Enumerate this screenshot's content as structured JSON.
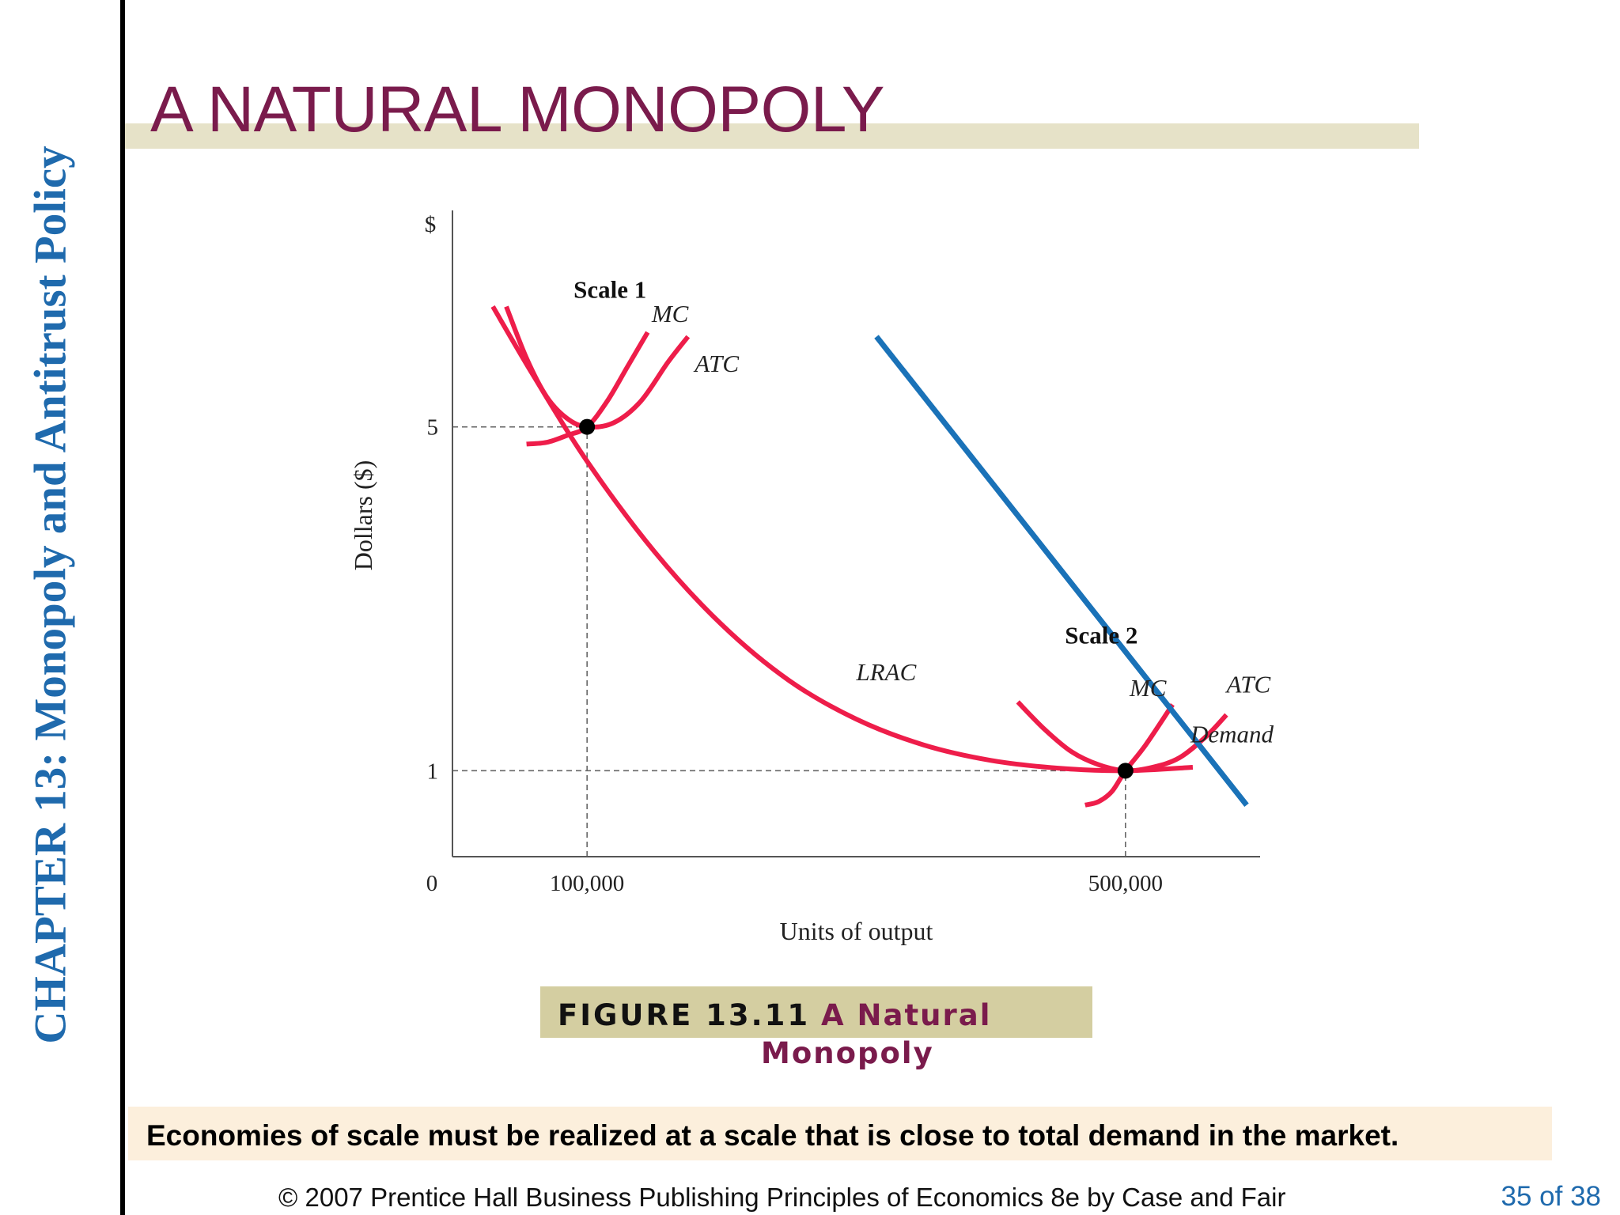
{
  "sidebar": {
    "chapter_title": "CHAPTER 13:  Monopoly and Antitrust Policy"
  },
  "slide": {
    "title": "A NATURAL MONOPOLY"
  },
  "figure": {
    "number": "FIGURE 13.11",
    "title_line1": "A Natural",
    "title_line2": "Monopoly"
  },
  "caption": "Economies of scale must be realized at a scale that is close to total demand in the market.",
  "footer": {
    "copyright": "© 2007 Prentice Hall Business Publishing   Principles of Economics 8e by Case and Fair",
    "page": "35 of 38"
  },
  "colors": {
    "title": "#7a1b4c",
    "chapter": "#1f6aad",
    "cost_curves": "#ee1d4a",
    "demand": "#1a72b8",
    "figure_box": "#d4cea1",
    "title_band": "#e6e2c8",
    "caption_band": "#fcefdc"
  },
  "chart_data": {
    "type": "line",
    "xlabel": "Units of output",
    "ylabel": "Dollars ($)",
    "y_unit_label": "$",
    "xlim": [
      0,
      600000
    ],
    "ylim": [
      0,
      7.5
    ],
    "x_ticks": [
      {
        "value": 0,
        "label": "0"
      },
      {
        "value": 100000,
        "label": "100,000"
      },
      {
        "value": 500000,
        "label": "500,000"
      }
    ],
    "y_ticks": [
      {
        "value": 5,
        "label": "5"
      },
      {
        "value": 1,
        "label": "1"
      }
    ],
    "grid": false,
    "reference_lines": [
      {
        "from": [
          0,
          5
        ],
        "to": [
          100000,
          5
        ],
        "style": "dashed"
      },
      {
        "from": [
          100000,
          0
        ],
        "to": [
          100000,
          5
        ],
        "style": "dashed"
      },
      {
        "from": [
          0,
          1
        ],
        "to": [
          500000,
          1
        ],
        "style": "dashed"
      },
      {
        "from": [
          500000,
          0
        ],
        "to": [
          500000,
          1
        ],
        "style": "dashed"
      }
    ],
    "series": [
      {
        "name": "LRAC",
        "points": [
          [
            30000,
            6.4
          ],
          [
            60000,
            5.6
          ],
          [
            100000,
            4.6
          ],
          [
            150000,
            3.55
          ],
          [
            200000,
            2.7
          ],
          [
            250000,
            2.05
          ],
          [
            300000,
            1.6
          ],
          [
            350000,
            1.3
          ],
          [
            400000,
            1.12
          ],
          [
            450000,
            1.03
          ],
          [
            500000,
            1.0
          ],
          [
            550000,
            1.04
          ]
        ]
      },
      {
        "name": "MC",
        "group": "Scale 1",
        "points": [
          [
            55000,
            4.8
          ],
          [
            70000,
            4.82
          ],
          [
            85000,
            4.9
          ],
          [
            100000,
            5.0
          ],
          [
            115000,
            5.3
          ],
          [
            130000,
            5.7
          ],
          [
            145000,
            6.1
          ]
        ]
      },
      {
        "name": "ATC",
        "group": "Scale 1",
        "points": [
          [
            40000,
            6.4
          ],
          [
            55000,
            5.8
          ],
          [
            70000,
            5.35
          ],
          [
            85000,
            5.1
          ],
          [
            100000,
            5.0
          ],
          [
            120000,
            5.05
          ],
          [
            140000,
            5.3
          ],
          [
            160000,
            5.75
          ],
          [
            175000,
            6.05
          ]
        ]
      },
      {
        "name": "MC",
        "group": "Scale 2",
        "points": [
          [
            470000,
            0.6
          ],
          [
            480000,
            0.64
          ],
          [
            490000,
            0.76
          ],
          [
            500000,
            1.0
          ],
          [
            515000,
            1.3
          ],
          [
            535000,
            1.77
          ]
        ]
      },
      {
        "name": "ATC",
        "group": "Scale 2",
        "points": [
          [
            420000,
            1.8
          ],
          [
            440000,
            1.48
          ],
          [
            460000,
            1.22
          ],
          [
            480000,
            1.07
          ],
          [
            500000,
            1.0
          ],
          [
            520000,
            1.04
          ],
          [
            540000,
            1.15
          ],
          [
            560000,
            1.4
          ],
          [
            575000,
            1.65
          ]
        ]
      },
      {
        "name": "Demand",
        "points": [
          [
            315000,
            6.05
          ],
          [
            590000,
            0.6
          ]
        ]
      }
    ],
    "points_marked": [
      [
        100000,
        5
      ],
      [
        500000,
        1
      ]
    ],
    "annotations": [
      {
        "text": "Scale 1",
        "x": 90000,
        "y": 6.5
      },
      {
        "text": "MC",
        "x": 148000,
        "y": 6.22
      },
      {
        "text": "ATC",
        "x": 180000,
        "y": 5.64
      },
      {
        "text": "Scale 2",
        "x": 455000,
        "y": 2.48
      },
      {
        "text": "MC",
        "x": 503000,
        "y": 1.87
      },
      {
        "text": "ATC",
        "x": 575000,
        "y": 1.91
      },
      {
        "text": "Demand",
        "x": 610000,
        "y": 1.33
      },
      {
        "text": "LRAC",
        "x": 300000,
        "y": 2.05
      }
    ]
  }
}
